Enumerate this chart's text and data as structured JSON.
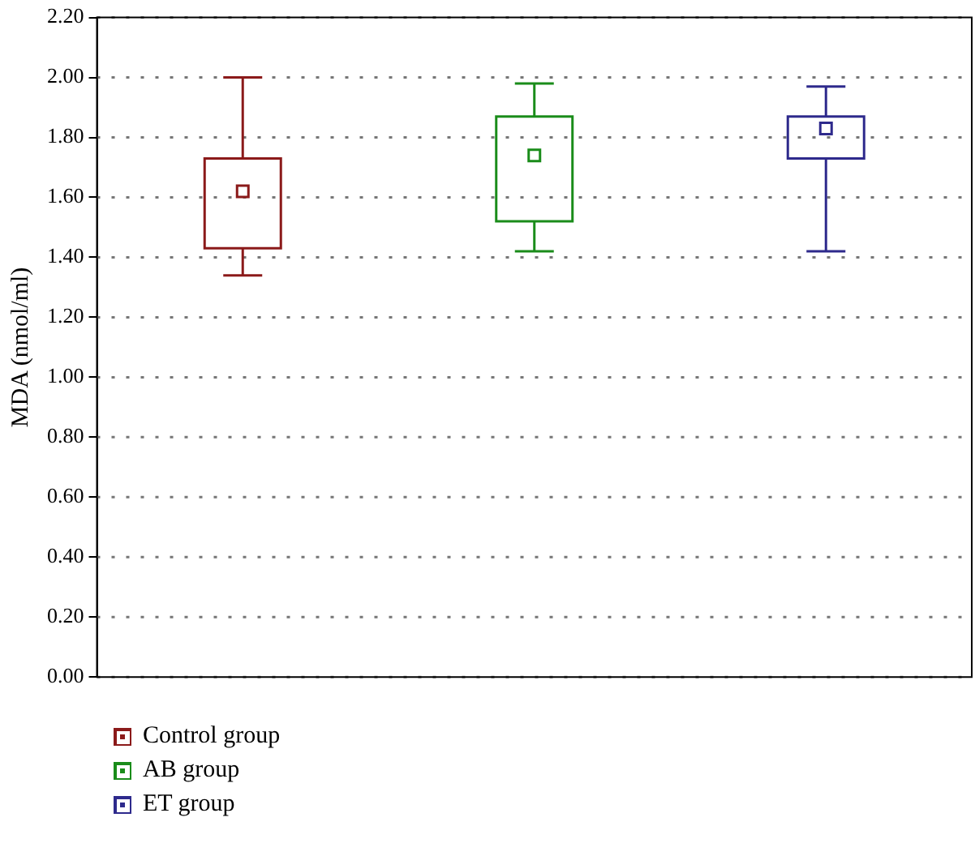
{
  "chart_data": {
    "type": "box",
    "ylabel": "MDA (nmol/ml)",
    "categories": [
      null,
      null,
      null
    ],
    "series": [
      {
        "name": "Control group",
        "color": "#8b1a1a",
        "boxes": [
          {
            "low": 1.34,
            "q1": 1.43,
            "median": 1.62,
            "q3": 1.73,
            "high": 2.0
          },
          null,
          null
        ]
      },
      {
        "name": "AB group",
        "color": "#1a8c1a",
        "boxes": [
          null,
          {
            "low": 1.42,
            "q1": 1.52,
            "median": 1.74,
            "q3": 1.87,
            "high": 1.98
          },
          null
        ]
      },
      {
        "name": "ET group",
        "color": "#2e2a8c",
        "boxes": [
          null,
          null,
          {
            "low": 1.42,
            "q1": 1.73,
            "median": 1.83,
            "q3": 1.87,
            "high": 1.97
          }
        ]
      }
    ],
    "ylim": [
      0,
      2.2
    ],
    "yticks": [
      {
        "value": 0,
        "label": "0.00"
      },
      {
        "value": 0.2,
        "label": "0.20"
      },
      {
        "value": 0.4,
        "label": "0.40"
      },
      {
        "value": 0.6,
        "label": "0.60"
      },
      {
        "value": 0.8,
        "label": "0.80"
      },
      {
        "value": 1,
        "label": "1.00"
      },
      {
        "value": 1.2,
        "label": "1.20"
      },
      {
        "value": 1.4,
        "label": "1.40"
      },
      {
        "value": 1.6,
        "label": "1.60"
      },
      {
        "value": 1.8,
        "label": "1.80"
      },
      {
        "value": 2,
        "label": "2.00"
      },
      {
        "value": 2.2,
        "label": "2.20"
      }
    ],
    "grid": "y",
    "line_style": "dotted",
    "legend": "bottom left",
    "marker": "square"
  }
}
